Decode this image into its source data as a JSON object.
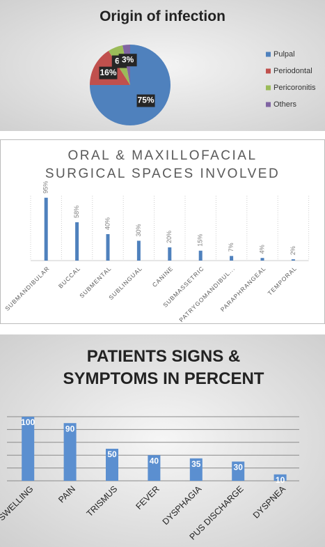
{
  "chart_data": [
    {
      "type": "pie",
      "title": "Origin of infection",
      "categories": [
        "Pulpal",
        "Periodontal",
        "Pericoronitis",
        "Others"
      ],
      "values": [
        75,
        16,
        6,
        3
      ],
      "value_labels": [
        "75%",
        "16%",
        "6%",
        "3%"
      ],
      "colors": [
        "#4f81bd",
        "#c0504d",
        "#9bbb59",
        "#8064a2"
      ],
      "legend": "right"
    },
    {
      "type": "bar",
      "title": "ORAL & MAXILLOFACIAL SURGICAL SPACES INVOLVED",
      "categories": [
        "SUBMANDIBULAR",
        "BUCCAL",
        "SUBMENTAL",
        "SUBLINGUAL",
        "CANINE",
        "SUBMASSETRIC",
        "PATRYGOMANDIBUL...",
        "PARAPHRANGEAL",
        "TEMPORAL"
      ],
      "values": [
        95,
        58,
        40,
        30,
        20,
        15,
        7,
        4,
        2
      ],
      "value_labels": [
        "95%",
        "58%",
        "40%",
        "30%",
        "20%",
        "15%",
        "7%",
        "4%",
        "2%"
      ],
      "color": "#4f81bd"
    },
    {
      "type": "bar",
      "title": "PATIENTS SIGNS & SYMPTOMS IN PERCENT",
      "categories": [
        "SWELLING",
        "PAIN",
        "TRISMUS",
        "FEVER",
        "DYSPHAGIA",
        "PUS DISCHARGE",
        "DYSPNEA"
      ],
      "values": [
        100,
        90,
        50,
        40,
        35,
        30,
        10
      ],
      "color": "#5b8fd0",
      "ylim": [
        0,
        110
      ],
      "yticks": [
        0,
        20,
        40,
        60,
        80,
        100
      ],
      "grid": true
    }
  ]
}
